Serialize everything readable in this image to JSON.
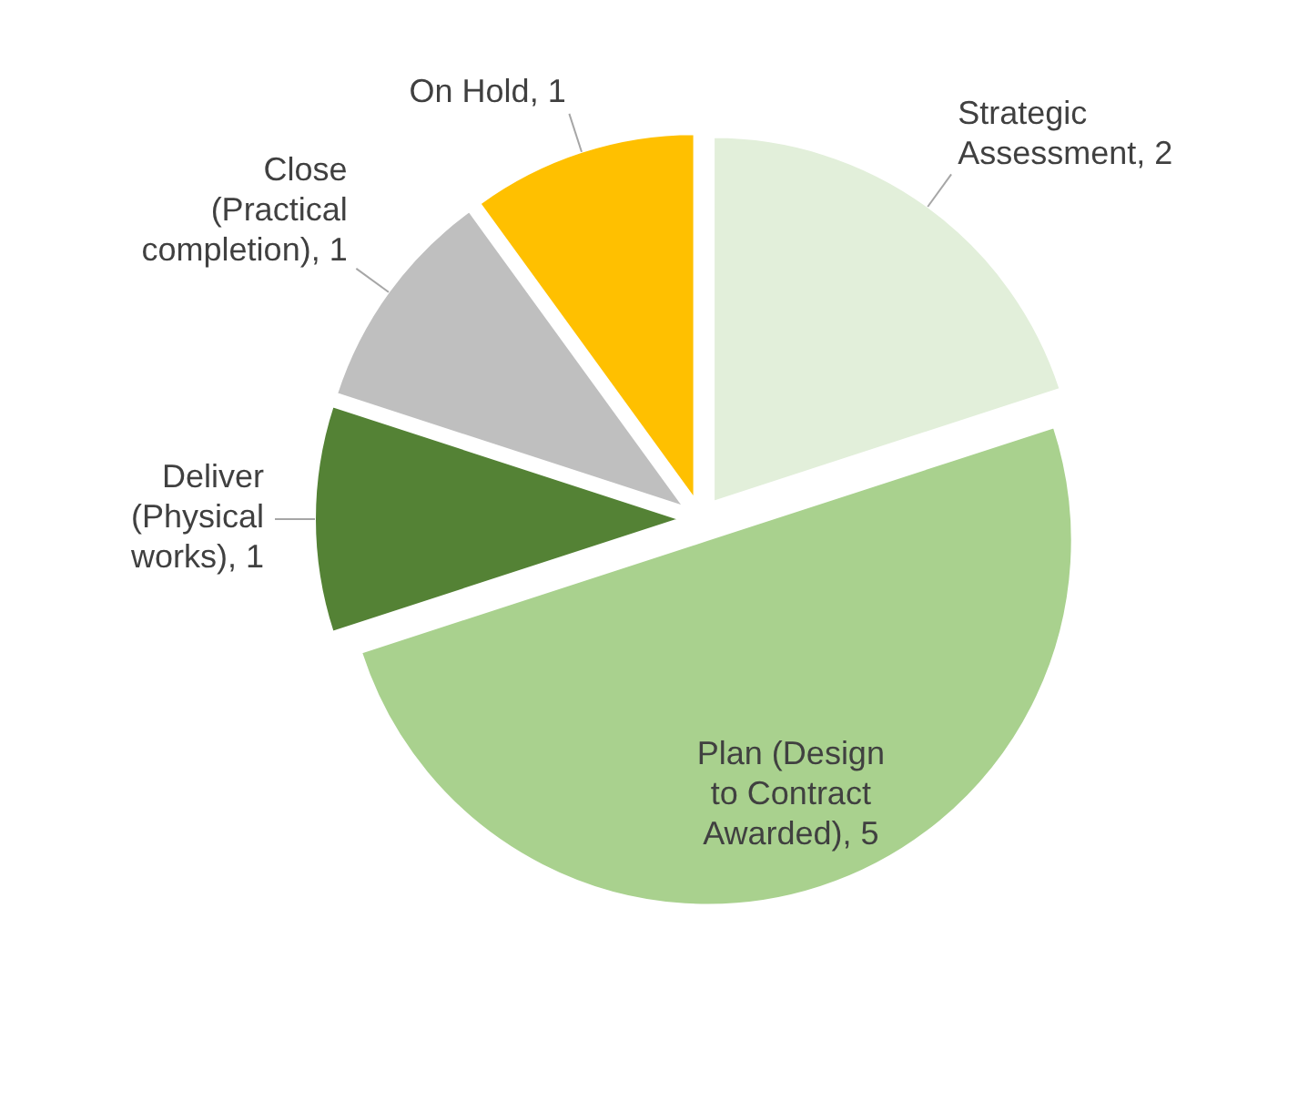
{
  "chart_data": {
    "type": "pie",
    "categories": [
      "Strategic Assessment",
      "Plan (Design to Contract Awarded)",
      "Deliver (Physical works)",
      "Close (Practical completion)",
      "On Hold"
    ],
    "values": [
      2,
      5,
      1,
      1,
      1
    ],
    "colors": [
      "#e2efda",
      "#a9d18e",
      "#548235",
      "#bfbfbf",
      "#ffc000"
    ],
    "value_labels": [
      ", 2",
      ", 5",
      ", 1",
      ", 1",
      ", 1"
    ]
  }
}
